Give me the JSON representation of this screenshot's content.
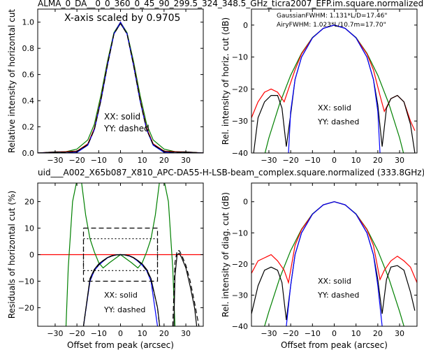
{
  "page": {
    "title_top": "ALMA_0_DA__0_0_360_0_45_90_299.5_324_348.5_GHz_ticra2007_EFP.im.square.normalized",
    "title_mid": "uid___A002_X65b087_X810_APC-DA55-H-LSB-beam_complex.square.normalized (333.8GHz)",
    "colors": {
      "red": "#ff0000",
      "green": "#008000",
      "blue": "#0000ff",
      "black": "#000000",
      "mid_title": "#ff0000"
    }
  },
  "chart_data": [
    {
      "type": "line",
      "id": "tl",
      "ylabel": "Relative intensity of horizontal cut",
      "xlabel": "",
      "xlim": [
        -38,
        38
      ],
      "ylim": [
        0,
        1.1
      ],
      "xticks": [
        -30,
        -20,
        -10,
        0,
        10,
        20,
        30
      ],
      "yticks": [
        0.0,
        0.2,
        0.4,
        0.6,
        0.8,
        1.0
      ],
      "ytick_labels": [
        "0.0",
        "0.2",
        "0.4",
        "0.6",
        "0.8",
        "1.0"
      ],
      "annotations": [
        "X-axis scaled by 0.9705",
        "XX: solid",
        "YY: dashed"
      ],
      "series": [
        {
          "color": "#008000",
          "style": "solid",
          "x": [
            -38,
            -30,
            -25,
            -20,
            -15,
            -12,
            -9,
            -6,
            -3,
            0,
            3,
            6,
            9,
            12,
            15,
            20,
            25,
            30,
            38
          ],
          "y": [
            0.0,
            0.005,
            0.01,
            0.03,
            0.1,
            0.22,
            0.44,
            0.7,
            0.92,
            1.0,
            0.92,
            0.7,
            0.44,
            0.22,
            0.1,
            0.03,
            0.01,
            0.005,
            0.0
          ]
        },
        {
          "color": "#ff0000",
          "style": "solid",
          "x": [
            -38,
            -30,
            -25,
            -20,
            -15,
            -12,
            -9,
            -6,
            -3,
            0,
            3,
            6,
            9,
            12,
            15,
            20,
            25,
            30,
            38
          ],
          "y": [
            0.0,
            0.008,
            0.01,
            0.015,
            0.07,
            0.19,
            0.41,
            0.68,
            0.91,
            1.0,
            0.91,
            0.68,
            0.41,
            0.19,
            0.07,
            0.015,
            0.01,
            0.008,
            0.0
          ]
        },
        {
          "color": "#000000",
          "style": "solid",
          "x": [
            -38,
            -30,
            -25,
            -20,
            -15,
            -12,
            -9,
            -6,
            -3,
            0,
            3,
            6,
            9,
            12,
            15,
            20,
            25,
            30,
            38
          ],
          "y": [
            0.0,
            0.008,
            0.007,
            0.012,
            0.065,
            0.18,
            0.4,
            0.67,
            0.91,
            0.99,
            0.91,
            0.67,
            0.4,
            0.18,
            0.065,
            0.012,
            0.007,
            0.008,
            0.0
          ]
        },
        {
          "color": "#0000ff",
          "style": "solid",
          "x": [
            -38,
            -30,
            -25,
            -20,
            -15,
            -12,
            -9,
            -6,
            -3,
            0,
            3,
            6,
            9,
            12,
            15,
            20,
            25,
            30,
            38
          ],
          "y": [
            0.0,
            0.0,
            0.0,
            0.005,
            0.06,
            0.18,
            0.4,
            0.67,
            0.91,
            1.0,
            0.91,
            0.67,
            0.4,
            0.18,
            0.06,
            0.005,
            0.0,
            0.0,
            0.0
          ]
        },
        {
          "color": "#000000",
          "style": "dashed",
          "x": [
            -38,
            -30,
            -25,
            -20,
            -15,
            -12,
            -9,
            -6,
            -3,
            0,
            3,
            6,
            9,
            12,
            15,
            20,
            25,
            30,
            38
          ],
          "y": [
            0.0,
            0.007,
            0.006,
            0.011,
            0.063,
            0.18,
            0.4,
            0.67,
            0.91,
            0.99,
            0.91,
            0.67,
            0.4,
            0.18,
            0.063,
            0.011,
            0.006,
            0.007,
            0.0
          ]
        }
      ]
    },
    {
      "type": "line",
      "id": "tr",
      "ylabel": "Rel. intensity of horiz. cut (dB)",
      "xlabel": "",
      "xlim": [
        -38,
        38
      ],
      "ylim": [
        -40,
        5
      ],
      "xticks": [
        -30,
        -20,
        -10,
        0,
        10,
        20,
        30
      ],
      "yticks": [
        -40,
        -30,
        -20,
        -10,
        0
      ],
      "ytick_labels": [
        "−40",
        "−30",
        "−20",
        "−10",
        "0"
      ],
      "annotations": [
        "GaussianFWHM: 1.131*L/D=17.46\"",
        "AiryFWHM: 1.023*L/10.7m=17.70\"",
        "XX: solid",
        "YY: dashed"
      ],
      "series": [
        {
          "color": "#008000",
          "style": "solid",
          "x": [
            -38,
            -30,
            -25,
            -20,
            -15,
            -10,
            -5,
            0,
            5,
            10,
            15,
            20,
            25,
            30,
            38
          ],
          "y": [
            -56.6,
            -35.3,
            -24.5,
            -15.7,
            -8.8,
            -3.9,
            -1.0,
            0,
            -1.0,
            -3.9,
            -8.8,
            -15.7,
            -24.5,
            -35.3,
            -56.6
          ]
        },
        {
          "color": "#ff0000",
          "style": "solid",
          "x": [
            -38,
            -35,
            -32,
            -29,
            -26,
            -23,
            -21,
            -18,
            -15,
            -10,
            -5,
            0,
            5,
            10,
            15,
            18,
            21,
            23,
            26,
            29,
            32,
            35,
            37
          ],
          "y": [
            -29,
            -24,
            -21,
            -20,
            -21,
            -24,
            -20,
            -14,
            -9,
            -4,
            -1,
            0,
            -1,
            -4,
            -9,
            -14,
            -22,
            -27,
            -23,
            -22,
            -24,
            -30,
            -33
          ]
        },
        {
          "color": "#000000",
          "style": "solid",
          "x": [
            -37,
            -35,
            -32,
            -29,
            -26,
            -24,
            -22,
            -20,
            -18,
            -15,
            -10,
            -5,
            0,
            5,
            10,
            15,
            18,
            20,
            22,
            24,
            26,
            29,
            32,
            35,
            37
          ],
          "y": [
            -40,
            -29,
            -24,
            -22,
            -22,
            -26,
            -38,
            -28,
            -17,
            -10,
            -4,
            -1,
            0,
            -1,
            -4,
            -10,
            -17,
            -25,
            -38,
            -26,
            -23,
            -22,
            -24,
            -31,
            -40
          ]
        },
        {
          "color": "#0000ff",
          "style": "solid",
          "x": [
            -21,
            -20,
            -18,
            -15,
            -10,
            -5,
            0,
            5,
            10,
            15,
            18,
            20,
            21
          ],
          "y": [
            -40,
            -27,
            -17,
            -10,
            -4,
            -1,
            0,
            -1,
            -4,
            -10,
            -17,
            -27,
            -40
          ]
        }
      ]
    },
    {
      "type": "line",
      "id": "bl",
      "ylabel": "Residuals of horizontal cut (%)",
      "xlabel": "Offset from peak (arcsec)",
      "xlim": [
        -38,
        38
      ],
      "ylim": [
        -27,
        27
      ],
      "xticks": [
        -30,
        -20,
        -10,
        0,
        10,
        20,
        30
      ],
      "yticks": [
        -20,
        -10,
        0,
        10,
        20
      ],
      "ytick_labels": [
        "−20",
        "−10",
        "0",
        "10",
        "20"
      ],
      "annotations": [
        "XX: solid",
        "YY: dashed"
      ],
      "series": [
        {
          "color": "#ff0000",
          "style": "solid",
          "x": [
            -38,
            38
          ],
          "y": [
            0,
            0
          ]
        },
        {
          "color": "#008000",
          "style": "solid",
          "x": [
            -25,
            -24,
            -22,
            -20,
            -18,
            -16,
            -14,
            -12,
            -10,
            -8,
            -5,
            0,
            5,
            8,
            10,
            12,
            14,
            16,
            18,
            20,
            22,
            24,
            25
          ],
          "y": [
            -27,
            -5,
            20,
            28,
            28,
            15,
            6,
            1,
            -3,
            -5,
            -3,
            0,
            -3,
            -5,
            -3,
            1,
            6,
            15,
            28,
            28,
            20,
            -5,
            -27
          ]
        },
        {
          "color": "#0000ff",
          "style": "solid",
          "x": [
            -17,
            -14,
            -12,
            -10,
            -8,
            -6,
            -4,
            -2,
            0,
            2,
            4,
            6,
            8,
            10,
            12,
            14,
            17
          ],
          "y": [
            -27,
            -10,
            -6,
            -4,
            -2.5,
            -1.2,
            -0.5,
            -0.1,
            0,
            -0.1,
            -0.5,
            -1.2,
            -2.5,
            -4,
            -6,
            -10,
            -27
          ]
        },
        {
          "color": "#000000",
          "style": "solid",
          "x": [
            -17,
            -14,
            -12,
            -10,
            -8,
            -6,
            -4,
            -2,
            0,
            2,
            4,
            6,
            8,
            10,
            12,
            14,
            17,
            18
          ],
          "y": [
            -27,
            -9,
            -5.5,
            -3.5,
            -2.2,
            -1.1,
            -0.4,
            -0.1,
            0,
            -0.1,
            -0.4,
            -1.1,
            -2.2,
            -3.5,
            -5.5,
            -9,
            -20,
            -27
          ]
        },
        {
          "color": "#000000",
          "style": "dashed",
          "x": [
            -17,
            -14,
            -12,
            -10,
            -8,
            -6,
            -4,
            -2,
            0,
            2,
            4,
            6,
            8,
            10,
            12,
            14,
            17,
            18
          ],
          "y": [
            -27,
            -9.5,
            -6,
            -3.8,
            -2.4,
            -1.2,
            -0.5,
            -0.1,
            0,
            -0.1,
            -0.5,
            -1.2,
            -2.4,
            -3.8,
            -6,
            -9.5,
            -20,
            -27
          ]
        },
        {
          "color": "#000000",
          "style": "solid",
          "x": [
            24.5,
            25,
            26,
            27,
            28,
            30,
            32,
            34,
            35
          ],
          "y": [
            -27,
            -8,
            0,
            0.5,
            -1,
            -5,
            -12,
            -20,
            -27
          ]
        },
        {
          "color": "#000000",
          "style": "dashed",
          "x": [
            24,
            25,
            26,
            27,
            28,
            30,
            32,
            34,
            36
          ],
          "y": [
            -27,
            -3,
            1.5,
            1.5,
            0,
            -4,
            -10,
            -18,
            -27
          ]
        },
        {
          "color": "#000000",
          "style": "dashed",
          "x": [
            -17,
            17,
            17,
            -17,
            -17
          ],
          "y": [
            10,
            10,
            -10,
            -10,
            10
          ]
        },
        {
          "color": "#000000",
          "style": "dotted",
          "x": [
            -17,
            17,
            17,
            -17,
            -17
          ],
          "y": [
            6,
            6,
            -6,
            -6,
            6
          ]
        }
      ]
    },
    {
      "type": "line",
      "id": "br",
      "ylabel": "Rel. intensity of diag. cut (dB)",
      "xlabel": "Offset from peak (arcsec)",
      "xlim": [
        -38,
        38
      ],
      "ylim": [
        -40,
        6
      ],
      "xticks": [
        -30,
        -20,
        -10,
        0,
        10,
        20,
        30
      ],
      "yticks": [
        -40,
        -30,
        -20,
        -10,
        0
      ],
      "ytick_labels": [
        "−40",
        "−30",
        "−20",
        "−10",
        "0"
      ],
      "annotations": [
        "XX: solid",
        "YY: dashed"
      ],
      "series": [
        {
          "color": "#008000",
          "style": "solid",
          "x": [
            -32,
            -30,
            -25,
            -20,
            -15,
            -10,
            -5,
            0,
            5,
            10,
            15,
            20,
            25,
            30,
            32
          ],
          "y": [
            -40,
            -35.3,
            -24.5,
            -15.7,
            -8.8,
            -3.9,
            -1.0,
            0,
            -1.0,
            -3.9,
            -8.8,
            -15.7,
            -24.5,
            -35.3,
            -40
          ]
        },
        {
          "color": "#ff0000",
          "style": "solid",
          "x": [
            -38,
            -35,
            -32,
            -29,
            -26,
            -23,
            -21,
            -18,
            -15,
            -10,
            -5,
            0,
            5,
            10,
            15,
            18,
            21,
            23,
            26,
            29,
            32,
            35,
            38
          ],
          "y": [
            -23,
            -19,
            -18,
            -17,
            -19,
            -22,
            -26,
            -14,
            -9,
            -4,
            -1,
            0,
            -1,
            -4,
            -9,
            -14,
            -25,
            -22,
            -19,
            -17.5,
            -19,
            -21,
            -26
          ]
        },
        {
          "color": "#000000",
          "style": "solid",
          "x": [
            -38,
            -35,
            -32,
            -29,
            -26,
            -24,
            -22,
            -20,
            -18,
            -15,
            -10,
            -5,
            0,
            5,
            10,
            15,
            18,
            20,
            22,
            24,
            26,
            29,
            32,
            35,
            37
          ],
          "y": [
            -36,
            -27,
            -22,
            -21,
            -22,
            -26,
            -38,
            -27,
            -17,
            -10,
            -4,
            -1,
            0,
            -1,
            -4,
            -10,
            -17,
            -25,
            -36,
            -25,
            -21,
            -20.5,
            -22,
            -29,
            -35
          ]
        },
        {
          "color": "#0000ff",
          "style": "solid",
          "x": [
            -22,
            -20,
            -18,
            -15,
            -10,
            -5,
            0,
            5,
            10,
            15,
            18,
            20,
            22
          ],
          "y": [
            -40,
            -27,
            -17,
            -10,
            -4,
            -1,
            0,
            -1,
            -4,
            -10,
            -17,
            -27,
            -40
          ]
        }
      ]
    }
  ]
}
